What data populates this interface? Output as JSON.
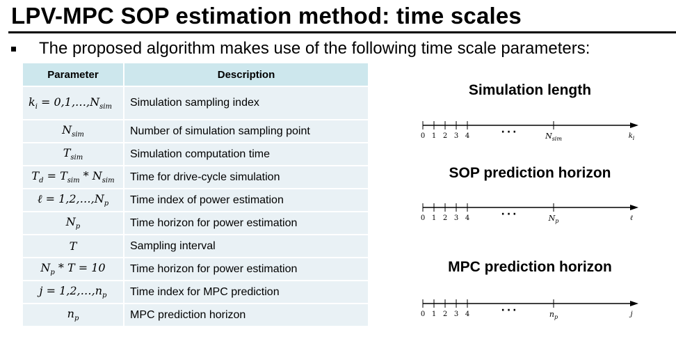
{
  "title": "LPV-MPC SOP estimation method: time scales",
  "bullet": "The proposed algorithm makes use of the following time scale parameters:",
  "table": {
    "headers": [
      "Parameter",
      "Description"
    ],
    "rows": [
      {
        "param": "k_i = 0,1,…,N_sim",
        "desc": "Simulation sampling index"
      },
      {
        "param": "N_sim",
        "desc": "Number of simulation sampling point"
      },
      {
        "param": "T_sim",
        "desc": "Simulation computation time"
      },
      {
        "param": "T_d = T_sim * N_sim",
        "desc": "Time for drive-cycle simulation"
      },
      {
        "param": "ℓ = 1,2,…,N_p",
        "desc": "Time index of power estimation"
      },
      {
        "param": "N_p",
        "desc": "Time horizon for power estimation"
      },
      {
        "param": "T",
        "desc": "Sampling interval"
      },
      {
        "param": "N_p * T = 10",
        "desc": "Time horizon for power estimation"
      },
      {
        "param": "j = 1,2,…,n_p",
        "desc": "Time index for MPC prediction"
      },
      {
        "param": "n_p",
        "desc": "MPC prediction horizon"
      }
    ]
  },
  "timelines": [
    {
      "title": "Simulation length",
      "ticks": [
        "0",
        "1",
        "2",
        "3",
        "4"
      ],
      "dots": "···",
      "mid_label": "N_sim",
      "end_label": "k_i"
    },
    {
      "title": "SOP prediction horizon",
      "ticks": [
        "0",
        "1",
        "2",
        "3",
        "4"
      ],
      "dots": "···",
      "mid_label": "N_p",
      "end_label": "ℓ"
    },
    {
      "title": "MPC prediction horizon",
      "ticks": [
        "0",
        "1",
        "2",
        "3",
        "4"
      ],
      "dots": "···",
      "mid_label": "n_p",
      "end_label": "j"
    }
  ]
}
